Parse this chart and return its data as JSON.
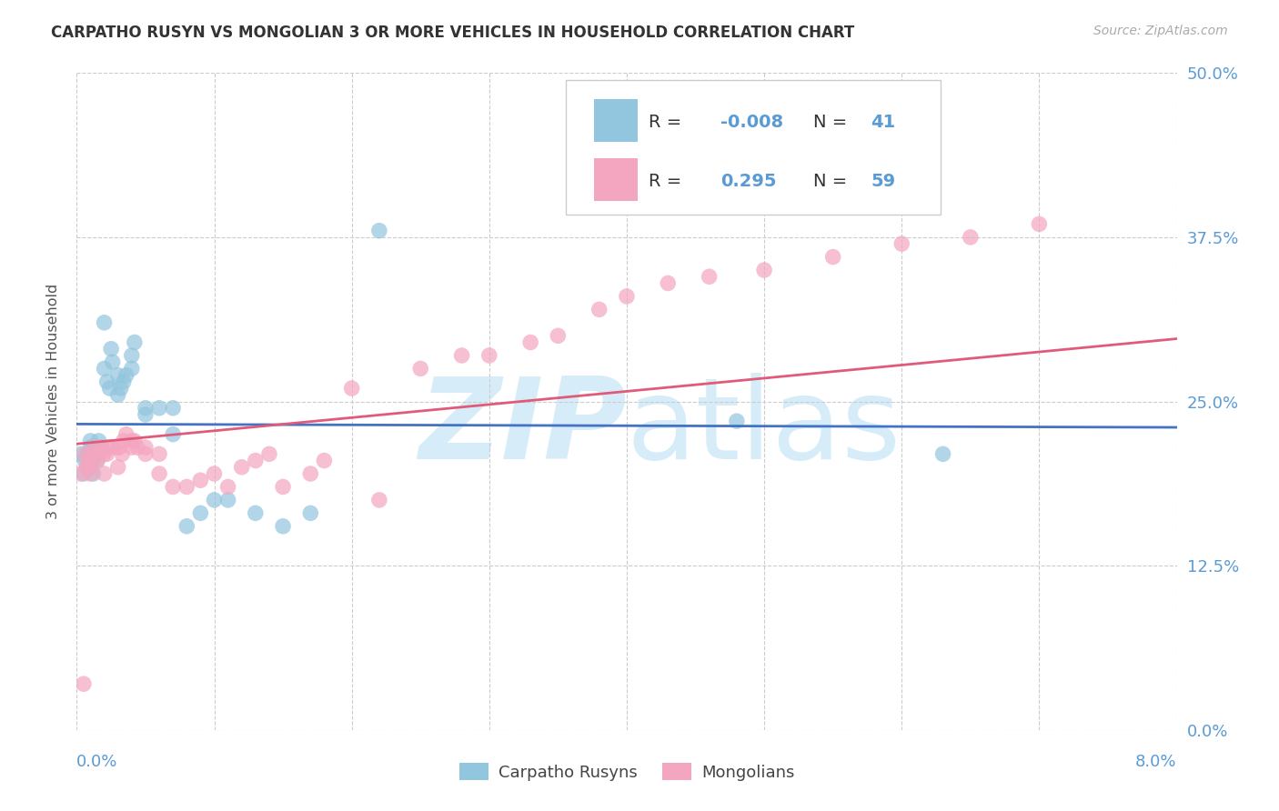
{
  "title": "CARPATHO RUSYN VS MONGOLIAN 3 OR MORE VEHICLES IN HOUSEHOLD CORRELATION CHART",
  "source": "Source: ZipAtlas.com",
  "ylabel": "3 or more Vehicles in Household",
  "legend_label_blue": "Carpatho Rusyns",
  "legend_label_pink": "Mongolians",
  "blue_color": "#92c5de",
  "pink_color": "#f4a6c0",
  "blue_line_color": "#4472c4",
  "pink_line_color": "#e05a7a",
  "watermark_color": "#d6ecf8",
  "blue_R": -0.008,
  "blue_N": 41,
  "pink_R": 0.295,
  "pink_N": 59,
  "xmin": 0.0,
  "xmax": 0.08,
  "ymin": 0.0,
  "ymax": 0.5,
  "blue_x": [
    0.0003,
    0.0005,
    0.0006,
    0.0008,
    0.0009,
    0.001,
    0.001,
    0.0012,
    0.0013,
    0.0015,
    0.0016,
    0.0018,
    0.002,
    0.002,
    0.0022,
    0.0024,
    0.0025,
    0.0026,
    0.003,
    0.003,
    0.0032,
    0.0034,
    0.0036,
    0.004,
    0.004,
    0.0042,
    0.005,
    0.005,
    0.006,
    0.007,
    0.007,
    0.008,
    0.009,
    0.01,
    0.011,
    0.013,
    0.015,
    0.017,
    0.022,
    0.048,
    0.063
  ],
  "blue_y": [
    0.21,
    0.195,
    0.205,
    0.21,
    0.2,
    0.215,
    0.22,
    0.195,
    0.21,
    0.205,
    0.22,
    0.215,
    0.275,
    0.31,
    0.265,
    0.26,
    0.29,
    0.28,
    0.255,
    0.27,
    0.26,
    0.265,
    0.27,
    0.275,
    0.285,
    0.295,
    0.24,
    0.245,
    0.245,
    0.225,
    0.245,
    0.155,
    0.165,
    0.175,
    0.175,
    0.165,
    0.155,
    0.165,
    0.38,
    0.235,
    0.21
  ],
  "pink_x": [
    0.0003,
    0.0005,
    0.0006,
    0.0007,
    0.0008,
    0.001,
    0.001,
    0.0011,
    0.0012,
    0.0013,
    0.0015,
    0.0016,
    0.0018,
    0.002,
    0.002,
    0.0022,
    0.0023,
    0.0025,
    0.003,
    0.003,
    0.0031,
    0.0033,
    0.0034,
    0.0036,
    0.004,
    0.004,
    0.0042,
    0.0044,
    0.005,
    0.005,
    0.006,
    0.006,
    0.007,
    0.008,
    0.009,
    0.01,
    0.011,
    0.012,
    0.013,
    0.014,
    0.015,
    0.017,
    0.018,
    0.02,
    0.022,
    0.025,
    0.028,
    0.03,
    0.033,
    0.035,
    0.038,
    0.04,
    0.043,
    0.046,
    0.05,
    0.055,
    0.06,
    0.065,
    0.07
  ],
  "pink_y": [
    0.195,
    0.035,
    0.21,
    0.2,
    0.205,
    0.195,
    0.2,
    0.21,
    0.205,
    0.215,
    0.205,
    0.21,
    0.215,
    0.195,
    0.21,
    0.21,
    0.215,
    0.215,
    0.2,
    0.215,
    0.215,
    0.21,
    0.22,
    0.225,
    0.215,
    0.22,
    0.22,
    0.215,
    0.21,
    0.215,
    0.21,
    0.195,
    0.185,
    0.185,
    0.19,
    0.195,
    0.185,
    0.2,
    0.205,
    0.21,
    0.185,
    0.195,
    0.205,
    0.26,
    0.175,
    0.275,
    0.285,
    0.285,
    0.295,
    0.3,
    0.32,
    0.33,
    0.34,
    0.345,
    0.35,
    0.36,
    0.37,
    0.375,
    0.385
  ]
}
